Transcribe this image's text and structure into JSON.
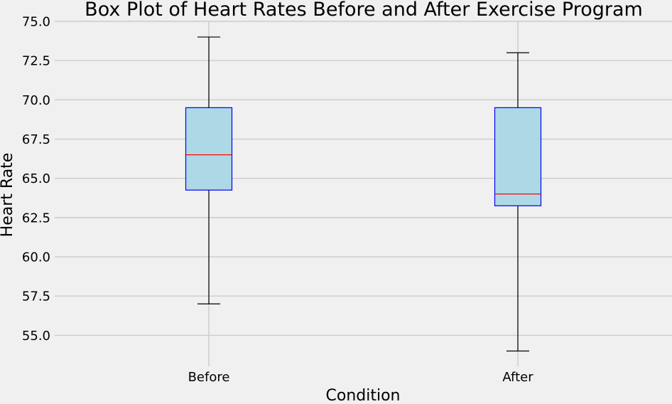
{
  "chart_data": {
    "type": "box",
    "title": "Box Plot of Heart Rates Before and After Exercise Program",
    "xlabel": "Condition",
    "ylabel": "Heart Rate",
    "ylim": [
      53.0,
      75.0
    ],
    "yticks": [
      "55.0",
      "57.5",
      "60.0",
      "62.5",
      "65.0",
      "67.5",
      "70.0",
      "72.5",
      "75.0"
    ],
    "grid": true,
    "categories": [
      "Before",
      "After"
    ],
    "boxes": [
      {
        "category": "Before",
        "min": 57.0,
        "q1": 64.25,
        "median": 66.5,
        "q3": 69.5,
        "max": 74.0
      },
      {
        "category": "After",
        "min": 54.0,
        "q1": 63.25,
        "median": 64.0,
        "q3": 69.5,
        "max": 73.0
      }
    ],
    "colors": {
      "background": "#f0f0f0",
      "grid": "#cbcbcb",
      "box_fill": "#add8e6",
      "box_edge": "#0000ff",
      "median": "#ff0000",
      "whisker": "#000000"
    }
  }
}
